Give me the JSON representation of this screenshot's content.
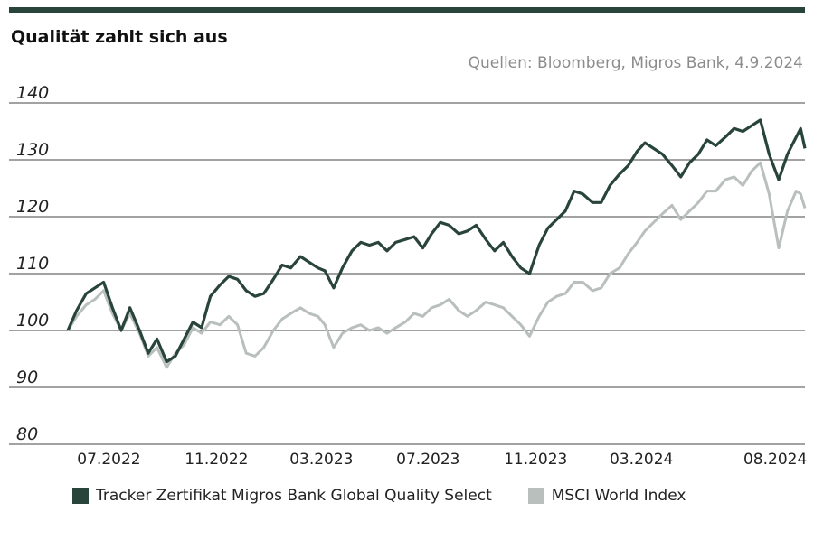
{
  "title": "Qualität zahlt sich aus",
  "source": "Quellen: Bloomberg, Migros Bank, 4.9.2024",
  "colors": {
    "bar": "#29443a",
    "series1": "#29443a",
    "series2": "#b8bfbc",
    "grid": "#444444"
  },
  "chart_data": {
    "type": "line",
    "ylim": [
      80,
      140
    ],
    "yticks": [
      "140",
      "130",
      "120",
      "110",
      "100",
      "90",
      "80"
    ],
    "ytick_values": [
      140,
      130,
      120,
      110,
      100,
      90,
      80
    ],
    "xlim": [
      "2022-05-15",
      "2024-09-04"
    ],
    "xticks": [
      "07.2022",
      "11.2022",
      "03.2023",
      "07.2023",
      "11.2023",
      "03.2024",
      "08.2024"
    ],
    "xtick_dates": [
      "2022-07-01",
      "2022-11-01",
      "2023-03-01",
      "2023-07-01",
      "2023-11-01",
      "2024-03-01",
      "2024-08-01"
    ],
    "grid": true,
    "legend_position": "bottom",
    "series": [
      {
        "name": "Tracker Zertifikat Migros Bank Global Quality Select",
        "points": [
          [
            "2022-05-15",
            100.0
          ],
          [
            "2022-05-25",
            103.5
          ],
          [
            "2022-06-05",
            106.5
          ],
          [
            "2022-06-15",
            107.5
          ],
          [
            "2022-06-25",
            108.5
          ],
          [
            "2022-07-05",
            104.0
          ],
          [
            "2022-07-15",
            100.0
          ],
          [
            "2022-07-25",
            104.0
          ],
          [
            "2022-08-05",
            100.0
          ],
          [
            "2022-08-15",
            96.0
          ],
          [
            "2022-08-25",
            98.5
          ],
          [
            "2022-09-05",
            94.5
          ],
          [
            "2022-09-15",
            95.5
          ],
          [
            "2022-09-25",
            98.5
          ],
          [
            "2022-10-05",
            101.5
          ],
          [
            "2022-10-15",
            100.5
          ],
          [
            "2022-10-25",
            106.0
          ],
          [
            "2022-11-05",
            108.0
          ],
          [
            "2022-11-15",
            109.5
          ],
          [
            "2022-11-25",
            109.0
          ],
          [
            "2022-12-05",
            107.0
          ],
          [
            "2022-12-15",
            106.0
          ],
          [
            "2022-12-25",
            106.5
          ],
          [
            "2023-01-05",
            109.0
          ],
          [
            "2023-01-15",
            111.5
          ],
          [
            "2023-01-25",
            111.0
          ],
          [
            "2023-02-05",
            113.0
          ],
          [
            "2023-02-15",
            112.0
          ],
          [
            "2023-02-25",
            111.0
          ],
          [
            "2023-03-05",
            110.5
          ],
          [
            "2023-03-15",
            107.5
          ],
          [
            "2023-03-25",
            111.0
          ],
          [
            "2023-04-05",
            114.0
          ],
          [
            "2023-04-15",
            115.5
          ],
          [
            "2023-04-25",
            115.0
          ],
          [
            "2023-05-05",
            115.5
          ],
          [
            "2023-05-15",
            114.0
          ],
          [
            "2023-05-25",
            115.5
          ],
          [
            "2023-06-05",
            116.0
          ],
          [
            "2023-06-15",
            116.5
          ],
          [
            "2023-06-25",
            114.5
          ],
          [
            "2023-07-05",
            117.0
          ],
          [
            "2023-07-15",
            119.0
          ],
          [
            "2023-07-25",
            118.5
          ],
          [
            "2023-08-05",
            117.0
          ],
          [
            "2023-08-15",
            117.5
          ],
          [
            "2023-08-25",
            118.5
          ],
          [
            "2023-09-05",
            116.0
          ],
          [
            "2023-09-15",
            114.0
          ],
          [
            "2023-09-25",
            115.5
          ],
          [
            "2023-10-05",
            113.0
          ],
          [
            "2023-10-15",
            111.0
          ],
          [
            "2023-10-25",
            110.0
          ],
          [
            "2023-11-05",
            115.0
          ],
          [
            "2023-11-15",
            118.0
          ],
          [
            "2023-11-25",
            119.5
          ],
          [
            "2023-12-05",
            121.0
          ],
          [
            "2023-12-15",
            124.5
          ],
          [
            "2023-12-25",
            124.0
          ],
          [
            "2024-01-05",
            122.5
          ],
          [
            "2024-01-15",
            122.5
          ],
          [
            "2024-01-25",
            125.5
          ],
          [
            "2024-02-05",
            127.5
          ],
          [
            "2024-02-15",
            129.0
          ],
          [
            "2024-02-25",
            131.5
          ],
          [
            "2024-03-05",
            133.0
          ],
          [
            "2024-03-15",
            132.0
          ],
          [
            "2024-03-25",
            131.0
          ],
          [
            "2024-04-05",
            129.0
          ],
          [
            "2024-04-15",
            127.0
          ],
          [
            "2024-04-25",
            129.5
          ],
          [
            "2024-05-05",
            131.0
          ],
          [
            "2024-05-15",
            133.5
          ],
          [
            "2024-05-25",
            132.5
          ],
          [
            "2024-06-05",
            134.0
          ],
          [
            "2024-06-15",
            135.5
          ],
          [
            "2024-06-25",
            135.0
          ],
          [
            "2024-07-05",
            136.0
          ],
          [
            "2024-07-15",
            137.0
          ],
          [
            "2024-07-25",
            131.0
          ],
          [
            "2024-08-05",
            126.5
          ],
          [
            "2024-08-15",
            131.0
          ],
          [
            "2024-08-25",
            134.0
          ],
          [
            "2024-08-30",
            135.5
          ],
          [
            "2024-09-04",
            132.0
          ]
        ]
      },
      {
        "name": "MSCI World Index",
        "points": [
          [
            "2022-05-15",
            100.0
          ],
          [
            "2022-05-25",
            102.5
          ],
          [
            "2022-06-05",
            104.5
          ],
          [
            "2022-06-15",
            105.5
          ],
          [
            "2022-06-25",
            107.0
          ],
          [
            "2022-07-05",
            103.0
          ],
          [
            "2022-07-15",
            100.0
          ],
          [
            "2022-07-25",
            103.0
          ],
          [
            "2022-08-05",
            99.5
          ],
          [
            "2022-08-15",
            95.5
          ],
          [
            "2022-08-25",
            97.0
          ],
          [
            "2022-09-05",
            93.5
          ],
          [
            "2022-09-15",
            96.0
          ],
          [
            "2022-09-25",
            97.5
          ],
          [
            "2022-10-05",
            100.5
          ],
          [
            "2022-10-15",
            99.5
          ],
          [
            "2022-10-25",
            101.5
          ],
          [
            "2022-11-05",
            101.0
          ],
          [
            "2022-11-15",
            102.5
          ],
          [
            "2022-11-25",
            101.0
          ],
          [
            "2022-12-05",
            96.0
          ],
          [
            "2022-12-15",
            95.5
          ],
          [
            "2022-12-25",
            97.0
          ],
          [
            "2023-01-05",
            100.0
          ],
          [
            "2023-01-15",
            102.0
          ],
          [
            "2023-01-25",
            103.0
          ],
          [
            "2023-02-05",
            104.0
          ],
          [
            "2023-02-15",
            103.0
          ],
          [
            "2023-02-25",
            102.5
          ],
          [
            "2023-03-05",
            101.0
          ],
          [
            "2023-03-15",
            97.0
          ],
          [
            "2023-03-25",
            99.5
          ],
          [
            "2023-04-05",
            100.5
          ],
          [
            "2023-04-15",
            101.0
          ],
          [
            "2023-04-25",
            100.0
          ],
          [
            "2023-05-05",
            100.5
          ],
          [
            "2023-05-15",
            99.5
          ],
          [
            "2023-05-25",
            100.5
          ],
          [
            "2023-06-05",
            101.5
          ],
          [
            "2023-06-15",
            103.0
          ],
          [
            "2023-06-25",
            102.5
          ],
          [
            "2023-07-05",
            104.0
          ],
          [
            "2023-07-15",
            104.5
          ],
          [
            "2023-07-25",
            105.5
          ],
          [
            "2023-08-05",
            103.5
          ],
          [
            "2023-08-15",
            102.5
          ],
          [
            "2023-08-25",
            103.5
          ],
          [
            "2023-09-05",
            105.0
          ],
          [
            "2023-09-15",
            104.5
          ],
          [
            "2023-09-25",
            104.0
          ],
          [
            "2023-10-05",
            102.5
          ],
          [
            "2023-10-15",
            101.0
          ],
          [
            "2023-10-25",
            99.0
          ],
          [
            "2023-11-05",
            102.5
          ],
          [
            "2023-11-15",
            105.0
          ],
          [
            "2023-11-25",
            106.0
          ],
          [
            "2023-12-05",
            106.5
          ],
          [
            "2023-12-15",
            108.5
          ],
          [
            "2023-12-25",
            108.5
          ],
          [
            "2024-01-05",
            107.0
          ],
          [
            "2024-01-15",
            107.5
          ],
          [
            "2024-01-25",
            110.0
          ],
          [
            "2024-02-05",
            111.0
          ],
          [
            "2024-02-15",
            113.5
          ],
          [
            "2024-02-25",
            115.5
          ],
          [
            "2024-03-05",
            117.5
          ],
          [
            "2024-03-15",
            119.0
          ],
          [
            "2024-03-25",
            120.5
          ],
          [
            "2024-04-05",
            122.0
          ],
          [
            "2024-04-15",
            119.5
          ],
          [
            "2024-04-25",
            121.0
          ],
          [
            "2024-05-05",
            122.5
          ],
          [
            "2024-05-15",
            124.5
          ],
          [
            "2024-05-25",
            124.5
          ],
          [
            "2024-06-05",
            126.5
          ],
          [
            "2024-06-15",
            127.0
          ],
          [
            "2024-06-25",
            125.5
          ],
          [
            "2024-07-05",
            128.0
          ],
          [
            "2024-07-15",
            129.5
          ],
          [
            "2024-07-25",
            124.0
          ],
          [
            "2024-08-05",
            114.5
          ],
          [
            "2024-08-15",
            121.0
          ],
          [
            "2024-08-25",
            124.5
          ],
          [
            "2024-08-30",
            124.0
          ],
          [
            "2024-09-04",
            121.5
          ]
        ]
      }
    ]
  }
}
